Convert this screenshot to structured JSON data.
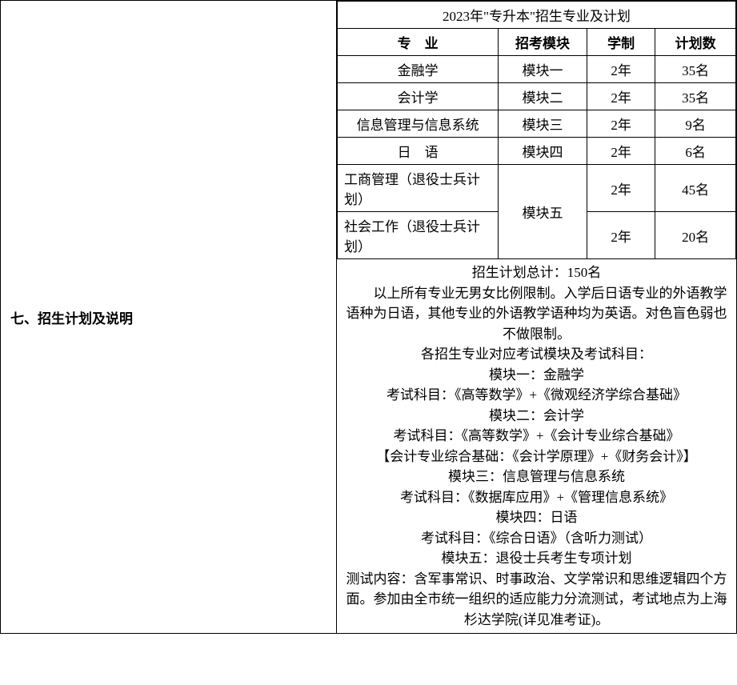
{
  "sectionLabel": "七、招生计划及说明",
  "tableTitle": "2023年\"专升本\"招生专业及计划",
  "headers": {
    "major": "专　业",
    "module": "招考模块",
    "duration": "学制",
    "plan": "计划数"
  },
  "rows": {
    "r1": {
      "major": "金融学",
      "module": "模块一",
      "duration": "2年",
      "plan": "35名"
    },
    "r2": {
      "major": "会计学",
      "module": "模块二",
      "duration": "2年",
      "plan": "35名"
    },
    "r3": {
      "major": "信息管理与信息系统",
      "module": "模块三",
      "duration": "2年",
      "plan": "9名"
    },
    "r4": {
      "major": "日　语",
      "module": "模块四",
      "duration": "2年",
      "plan": "6名"
    },
    "r5": {
      "major": "工商管理（退役士兵计划）",
      "module": "模块五",
      "duration": "2年",
      "plan": "45名"
    },
    "r6": {
      "major": "社会工作（退役士兵计划）",
      "duration": "2年",
      "plan": "20名"
    }
  },
  "notes": {
    "l1": "招生计划总计：150名",
    "l2": "以上所有专业无男女比例限制。入学后日语专业的外语教学语种为日语，其他专业的外语教学语种均为英语。对色盲色弱也不做限制。",
    "l3": "各招生专业对应考试模块及考试科目：",
    "l4": "模块一：金融学",
    "l5": "考试科目：《高等数学》+《微观经济学综合基础》",
    "l6": "模块二：会计学",
    "l7": "考试科目：《高等数学》+《会计专业综合基础》",
    "l8": "【会计专业综合基础：《会计学原理》+《财务会计》】",
    "l9": "模块三：信息管理与信息系统",
    "l10": "考试科目：《数据库应用》+《管理信息系统》",
    "l11": "模块四：日语",
    "l12": "考试科目：《综合日语》（含听力测试）",
    "l13": "模块五：退役士兵考生专项计划",
    "l14": "测试内容：含军事常识、时事政治、文学常识和思维逻辑四个方面。参加由全市统一组织的适应能力分流测试，考试地点为上海杉达学院(详见准考证)。"
  }
}
